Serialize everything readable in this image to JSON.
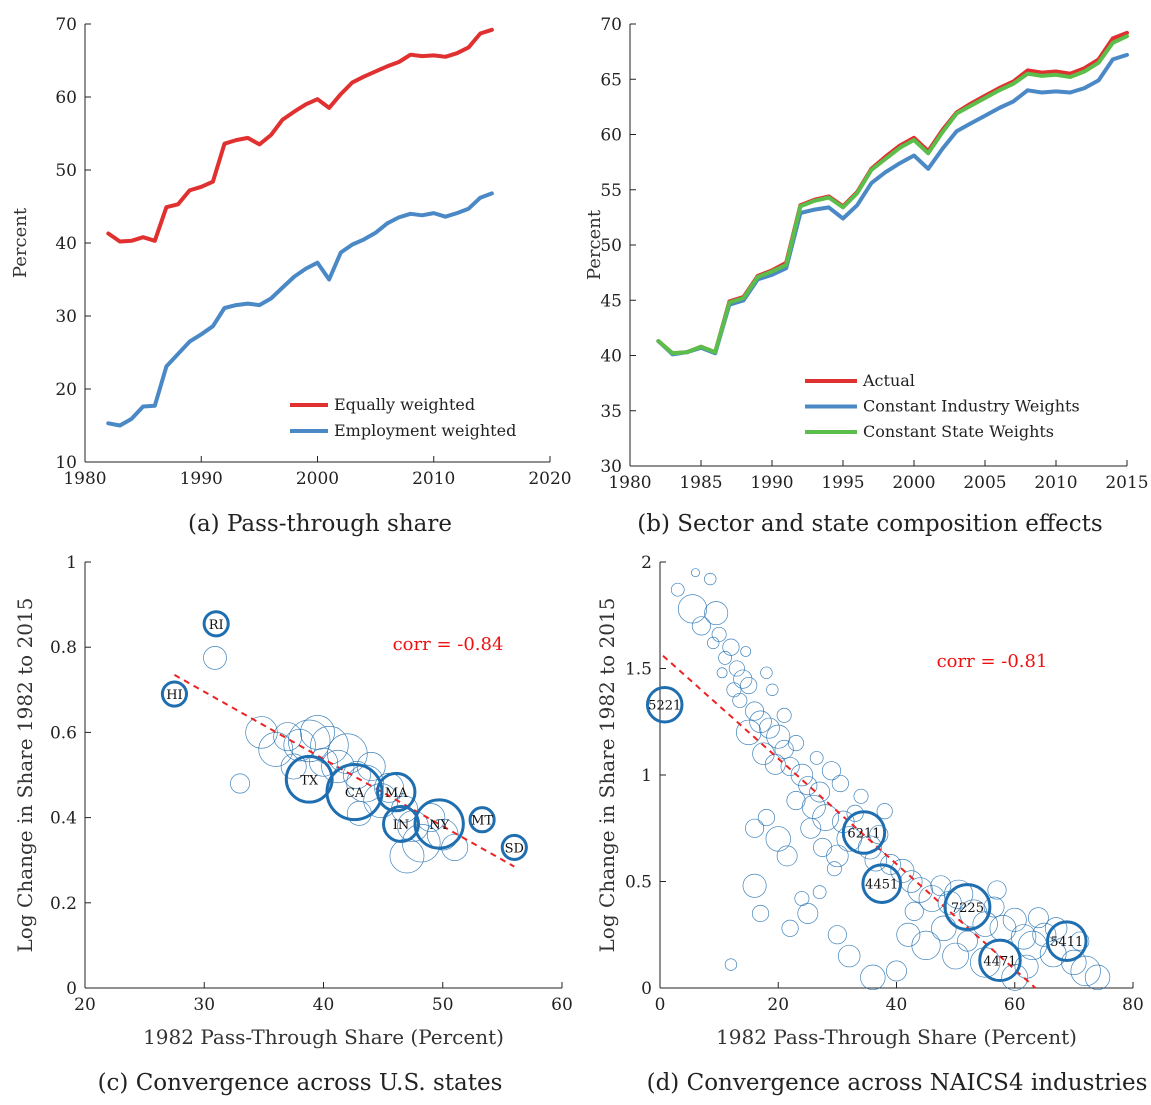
{
  "chart_data": [
    {
      "id": "a",
      "type": "line",
      "caption": "(a) Pass-through share",
      "ylabel": "Percent",
      "xlim": [
        1980,
        2020
      ],
      "ylim": [
        10,
        70
      ],
      "xticks": [
        "1980",
        "1990",
        "2000",
        "2010",
        "2020"
      ],
      "yticks": [
        "10",
        "20",
        "30",
        "40",
        "50",
        "60",
        "70"
      ],
      "legend_position": "bottom-right",
      "grid": false,
      "x": [
        1982,
        1983,
        1984,
        1985,
        1986,
        1987,
        1988,
        1989,
        1990,
        1991,
        1992,
        1993,
        1994,
        1995,
        1996,
        1997,
        1998,
        1999,
        2000,
        2001,
        2002,
        2003,
        2004,
        2005,
        2006,
        2007,
        2008,
        2009,
        2010,
        2011,
        2012,
        2013,
        2014,
        2015
      ],
      "series": [
        {
          "name": "Equally weighted",
          "color": "#e03030",
          "values": [
            41.3,
            40.2,
            40.3,
            40.8,
            40.3,
            44.9,
            45.3,
            47.2,
            47.7,
            48.4,
            53.6,
            54.1,
            54.4,
            53.5,
            54.8,
            56.9,
            58.0,
            59.0,
            59.7,
            58.5,
            60.4,
            62.0,
            62.8,
            63.5,
            64.2,
            64.8,
            65.8,
            65.6,
            65.7,
            65.5,
            66.0,
            66.8,
            68.7,
            69.2
          ]
        },
        {
          "name": "Employment weighted",
          "color": "#4a88c6",
          "values": [
            15.3,
            15.0,
            15.9,
            17.6,
            17.7,
            23.1,
            24.8,
            26.5,
            27.5,
            28.6,
            31.1,
            31.5,
            31.7,
            31.5,
            32.4,
            33.9,
            35.4,
            36.5,
            37.3,
            35.0,
            38.7,
            39.8,
            40.5,
            41.4,
            42.7,
            43.5,
            44.0,
            43.8,
            44.1,
            43.6,
            44.1,
            44.7,
            46.2,
            46.8
          ]
        }
      ]
    },
    {
      "id": "b",
      "type": "line",
      "caption": "(b) Sector and state composition effects",
      "ylabel": "Percent",
      "xlim": [
        1980,
        2015
      ],
      "ylim": [
        30,
        70
      ],
      "xticks": [
        "1980",
        "1985",
        "1990",
        "1995",
        "2000",
        "2005",
        "2010",
        "2015"
      ],
      "yticks": [
        "30",
        "35",
        "40",
        "45",
        "50",
        "55",
        "60",
        "65",
        "70"
      ],
      "legend_position": "bottom-right",
      "grid": false,
      "x": [
        1982,
        1983,
        1984,
        1985,
        1986,
        1987,
        1988,
        1989,
        1990,
        1991,
        1992,
        1993,
        1994,
        1995,
        1996,
        1997,
        1998,
        1999,
        2000,
        2001,
        2002,
        2003,
        2004,
        2005,
        2006,
        2007,
        2008,
        2009,
        2010,
        2011,
        2012,
        2013,
        2014,
        2015
      ],
      "series": [
        {
          "name": "Actual",
          "color": "#e03030",
          "values": [
            41.3,
            40.2,
            40.3,
            40.8,
            40.3,
            44.9,
            45.3,
            47.2,
            47.7,
            48.4,
            53.6,
            54.1,
            54.4,
            53.5,
            54.8,
            56.9,
            58.0,
            59.0,
            59.7,
            58.5,
            60.4,
            62.0,
            62.8,
            63.5,
            64.2,
            64.8,
            65.8,
            65.6,
            65.7,
            65.5,
            66.0,
            66.8,
            68.7,
            69.2
          ]
        },
        {
          "name": "Constant Industry Weights",
          "color": "#4a88c6",
          "values": [
            41.3,
            40.1,
            40.3,
            40.7,
            40.2,
            44.6,
            45.0,
            46.9,
            47.3,
            47.9,
            52.9,
            53.2,
            53.4,
            52.4,
            53.6,
            55.6,
            56.6,
            57.4,
            58.1,
            56.9,
            58.7,
            60.3,
            61.0,
            61.7,
            62.4,
            63.0,
            64.0,
            63.8,
            63.9,
            63.8,
            64.2,
            64.9,
            66.8,
            67.2
          ]
        },
        {
          "name": "Constant State Weights",
          "color": "#5cbe4a",
          "values": [
            41.3,
            40.2,
            40.3,
            40.8,
            40.3,
            44.8,
            45.2,
            47.1,
            47.6,
            48.2,
            53.5,
            54.0,
            54.3,
            53.4,
            54.7,
            56.8,
            57.8,
            58.8,
            59.5,
            58.3,
            60.2,
            61.9,
            62.6,
            63.3,
            64.0,
            64.6,
            65.5,
            65.3,
            65.4,
            65.2,
            65.7,
            66.5,
            68.3,
            68.9
          ]
        }
      ]
    },
    {
      "id": "c",
      "type": "scatter",
      "caption": "(c) Convergence across U.S. states",
      "xlabel": "1982 Pass-Through Share (Percent)",
      "ylabel": "Log Change in Share 1982 to 2015",
      "xlim": [
        20,
        60
      ],
      "ylim": [
        0,
        1
      ],
      "xticks": [
        "20",
        "30",
        "40",
        "50",
        "60"
      ],
      "yticks": [
        "0",
        "0.2",
        "0.4",
        "0.6",
        "0.8",
        "1"
      ],
      "annotation": "corr = -0.84",
      "fit_line": {
        "x": [
          27.5,
          56.0
        ],
        "y": [
          0.735,
          0.285
        ],
        "color": "#ee2222",
        "style": "dashed"
      },
      "point_color": "#1f6fb0",
      "labeled_points": [
        {
          "label": "RI",
          "x": 31.0,
          "y": 0.855,
          "size": 1.0
        },
        {
          "label": "HI",
          "x": 27.5,
          "y": 0.69,
          "size": 1.0
        },
        {
          "label": "TX",
          "x": 38.8,
          "y": 0.49,
          "size": 3.6
        },
        {
          "label": "CA",
          "x": 42.6,
          "y": 0.46,
          "size": 5.2
        },
        {
          "label": "MA",
          "x": 46.1,
          "y": 0.46,
          "size": 2.4
        },
        {
          "label": "IN",
          "x": 46.5,
          "y": 0.385,
          "size": 2.1
        },
        {
          "label": "NY",
          "x": 49.7,
          "y": 0.385,
          "size": 4.0
        },
        {
          "label": "MT",
          "x": 53.3,
          "y": 0.395,
          "size": 1.0
        },
        {
          "label": "SD",
          "x": 56.0,
          "y": 0.33,
          "size": 1.0
        }
      ],
      "other_points": [
        {
          "x": 30.9,
          "y": 0.775,
          "size": 1.0
        },
        {
          "x": 33.0,
          "y": 0.48,
          "size": 0.7
        },
        {
          "x": 34.8,
          "y": 0.6,
          "size": 1.9
        },
        {
          "x": 36.0,
          "y": 0.56,
          "size": 2.2
        },
        {
          "x": 37.0,
          "y": 0.59,
          "size": 1.5
        },
        {
          "x": 38.0,
          "y": 0.57,
          "size": 1.9
        },
        {
          "x": 38.8,
          "y": 0.58,
          "size": 3.3
        },
        {
          "x": 39.5,
          "y": 0.6,
          "size": 2.2
        },
        {
          "x": 40.0,
          "y": 0.53,
          "size": 1.5
        },
        {
          "x": 40.5,
          "y": 0.57,
          "size": 2.7
        },
        {
          "x": 41.2,
          "y": 0.52,
          "size": 2.0
        },
        {
          "x": 42.0,
          "y": 0.55,
          "size": 3.0
        },
        {
          "x": 42.8,
          "y": 0.5,
          "size": 1.4
        },
        {
          "x": 43.5,
          "y": 0.48,
          "size": 2.6
        },
        {
          "x": 44.0,
          "y": 0.52,
          "size": 1.5
        },
        {
          "x": 44.8,
          "y": 0.44,
          "size": 2.2
        },
        {
          "x": 45.5,
          "y": 0.47,
          "size": 1.6
        },
        {
          "x": 46.8,
          "y": 0.42,
          "size": 1.3
        },
        {
          "x": 47.5,
          "y": 0.38,
          "size": 1.8
        },
        {
          "x": 48.2,
          "y": 0.34,
          "size": 2.7
        },
        {
          "x": 49.0,
          "y": 0.4,
          "size": 1.5
        },
        {
          "x": 50.0,
          "y": 0.36,
          "size": 1.8
        },
        {
          "x": 51.0,
          "y": 0.33,
          "size": 1.3
        },
        {
          "x": 47.0,
          "y": 0.31,
          "size": 2.2
        },
        {
          "x": 43.0,
          "y": 0.41,
          "size": 1.1
        },
        {
          "x": 37.5,
          "y": 0.52,
          "size": 1.2
        }
      ]
    },
    {
      "id": "d",
      "type": "scatter",
      "caption": "(d) Convergence across NAICS4 industries",
      "xlabel": "1982 Pass-Through Share (Percent)",
      "ylabel": "Log Change in Share 1982 to 2015",
      "xlim": [
        0,
        80
      ],
      "ylim": [
        0,
        2
      ],
      "xticks": [
        "0",
        "20",
        "40",
        "60",
        "80"
      ],
      "yticks": [
        "0",
        "0.5",
        "1",
        "1.5",
        "2"
      ],
      "annotation": "corr = -0.81",
      "fit_line": {
        "x": [
          0.5,
          63.5
        ],
        "y": [
          1.56,
          0.0
        ],
        "color": "#ee2222",
        "style": "dashed"
      },
      "point_color": "#1f6fb0",
      "labeled_points": [
        {
          "label": "5221",
          "x": 0.8,
          "y": 1.33,
          "size": 1.6
        },
        {
          "label": "6211",
          "x": 34.5,
          "y": 0.73,
          "size": 2.3
        },
        {
          "label": "4451",
          "x": 37.5,
          "y": 0.49,
          "size": 1.9
        },
        {
          "label": "7225",
          "x": 52.0,
          "y": 0.38,
          "size": 2.7
        },
        {
          "label": "4471",
          "x": 57.5,
          "y": 0.13,
          "size": 2.2
        },
        {
          "label": "5411",
          "x": 68.8,
          "y": 0.22,
          "size": 2.0
        }
      ],
      "other_points": [
        {
          "x": 6.0,
          "y": 1.95,
          "size": 0.1
        },
        {
          "x": 3.0,
          "y": 1.87,
          "size": 0.25
        },
        {
          "x": 8.5,
          "y": 1.92,
          "size": 0.2
        },
        {
          "x": 5.5,
          "y": 1.78,
          "size": 1.2
        },
        {
          "x": 9.5,
          "y": 1.76,
          "size": 0.8
        },
        {
          "x": 7.0,
          "y": 1.7,
          "size": 0.5
        },
        {
          "x": 10.0,
          "y": 1.66,
          "size": 0.3
        },
        {
          "x": 12.0,
          "y": 1.6,
          "size": 0.4
        },
        {
          "x": 11.0,
          "y": 1.55,
          "size": 0.25
        },
        {
          "x": 13.0,
          "y": 1.5,
          "size": 0.35
        },
        {
          "x": 14.0,
          "y": 1.45,
          "size": 0.5
        },
        {
          "x": 12.5,
          "y": 1.4,
          "size": 0.3
        },
        {
          "x": 15.0,
          "y": 1.42,
          "size": 0.4
        },
        {
          "x": 13.5,
          "y": 1.35,
          "size": 0.3
        },
        {
          "x": 16.0,
          "y": 1.3,
          "size": 0.5
        },
        {
          "x": 17.0,
          "y": 1.25,
          "size": 0.7
        },
        {
          "x": 15.0,
          "y": 1.2,
          "size": 0.9
        },
        {
          "x": 18.5,
          "y": 1.22,
          "size": 0.6
        },
        {
          "x": 20.0,
          "y": 1.18,
          "size": 0.8
        },
        {
          "x": 21.0,
          "y": 1.12,
          "size": 0.5
        },
        {
          "x": 17.5,
          "y": 1.1,
          "size": 0.7
        },
        {
          "x": 19.5,
          "y": 1.05,
          "size": 0.6
        },
        {
          "x": 22.0,
          "y": 1.04,
          "size": 0.5
        },
        {
          "x": 24.0,
          "y": 1.0,
          "size": 0.7
        },
        {
          "x": 25.0,
          "y": 0.95,
          "size": 0.5
        },
        {
          "x": 27.0,
          "y": 0.92,
          "size": 0.6
        },
        {
          "x": 29.0,
          "y": 1.02,
          "size": 0.5
        },
        {
          "x": 30.5,
          "y": 0.96,
          "size": 0.4
        },
        {
          "x": 26.0,
          "y": 0.85,
          "size": 0.8
        },
        {
          "x": 28.0,
          "y": 0.8,
          "size": 1.0
        },
        {
          "x": 31.0,
          "y": 0.78,
          "size": 0.7
        },
        {
          "x": 23.0,
          "y": 0.88,
          "size": 0.5
        },
        {
          "x": 25.5,
          "y": 0.75,
          "size": 0.6
        },
        {
          "x": 18.0,
          "y": 0.8,
          "size": 0.4
        },
        {
          "x": 20.0,
          "y": 0.7,
          "size": 0.9
        },
        {
          "x": 16.0,
          "y": 0.75,
          "size": 0.5
        },
        {
          "x": 21.5,
          "y": 0.62,
          "size": 0.6
        },
        {
          "x": 27.5,
          "y": 0.66,
          "size": 0.5
        },
        {
          "x": 30.0,
          "y": 0.62,
          "size": 0.7
        },
        {
          "x": 32.0,
          "y": 0.7,
          "size": 0.9
        },
        {
          "x": 35.5,
          "y": 0.66,
          "size": 0.8
        },
        {
          "x": 37.0,
          "y": 0.72,
          "size": 0.5
        },
        {
          "x": 36.5,
          "y": 0.6,
          "size": 0.7
        },
        {
          "x": 39.0,
          "y": 0.58,
          "size": 0.6
        },
        {
          "x": 41.0,
          "y": 0.55,
          "size": 0.8
        },
        {
          "x": 42.5,
          "y": 0.5,
          "size": 0.7
        },
        {
          "x": 44.0,
          "y": 0.46,
          "size": 0.9
        },
        {
          "x": 46.0,
          "y": 0.42,
          "size": 1.0
        },
        {
          "x": 47.5,
          "y": 0.48,
          "size": 0.6
        },
        {
          "x": 49.0,
          "y": 0.4,
          "size": 0.8
        },
        {
          "x": 50.5,
          "y": 0.44,
          "size": 1.2
        },
        {
          "x": 53.0,
          "y": 0.35,
          "size": 1.1
        },
        {
          "x": 55.0,
          "y": 0.3,
          "size": 0.9
        },
        {
          "x": 56.5,
          "y": 0.38,
          "size": 0.6
        },
        {
          "x": 58.0,
          "y": 0.28,
          "size": 1.0
        },
        {
          "x": 60.0,
          "y": 0.32,
          "size": 0.8
        },
        {
          "x": 61.5,
          "y": 0.24,
          "size": 0.9
        },
        {
          "x": 63.0,
          "y": 0.2,
          "size": 1.2
        },
        {
          "x": 65.0,
          "y": 0.25,
          "size": 0.8
        },
        {
          "x": 66.5,
          "y": 0.16,
          "size": 1.0
        },
        {
          "x": 70.0,
          "y": 0.12,
          "size": 0.9
        },
        {
          "x": 72.0,
          "y": 0.08,
          "size": 1.3
        },
        {
          "x": 74.0,
          "y": 0.05,
          "size": 0.9
        },
        {
          "x": 62.0,
          "y": 0.1,
          "size": 0.8
        },
        {
          "x": 60.0,
          "y": 0.05,
          "size": 1.0
        },
        {
          "x": 55.0,
          "y": 0.12,
          "size": 1.3
        },
        {
          "x": 50.0,
          "y": 0.15,
          "size": 1.0
        },
        {
          "x": 45.0,
          "y": 0.2,
          "size": 1.2
        },
        {
          "x": 42.0,
          "y": 0.25,
          "size": 0.8
        },
        {
          "x": 40.0,
          "y": 0.08,
          "size": 0.6
        },
        {
          "x": 36.0,
          "y": 0.05,
          "size": 0.9
        },
        {
          "x": 32.0,
          "y": 0.15,
          "size": 0.7
        },
        {
          "x": 30.0,
          "y": 0.25,
          "size": 0.5
        },
        {
          "x": 25.0,
          "y": 0.35,
          "size": 0.6
        },
        {
          "x": 22.0,
          "y": 0.28,
          "size": 0.4
        },
        {
          "x": 16.0,
          "y": 0.48,
          "size": 0.8
        },
        {
          "x": 17.0,
          "y": 0.35,
          "size": 0.4
        },
        {
          "x": 12.0,
          "y": 0.11,
          "size": 0.2
        },
        {
          "x": 24.0,
          "y": 0.42,
          "size": 0.3
        },
        {
          "x": 27.0,
          "y": 0.45,
          "size": 0.25
        },
        {
          "x": 29.5,
          "y": 0.56,
          "size": 0.3
        },
        {
          "x": 33.0,
          "y": 0.82,
          "size": 0.4
        },
        {
          "x": 34.0,
          "y": 0.9,
          "size": 0.3
        },
        {
          "x": 38.0,
          "y": 0.83,
          "size": 0.35
        },
        {
          "x": 43.0,
          "y": 0.36,
          "size": 0.5
        },
        {
          "x": 48.0,
          "y": 0.28,
          "size": 0.9
        },
        {
          "x": 52.0,
          "y": 0.22,
          "size": 0.6
        },
        {
          "x": 57.0,
          "y": 0.46,
          "size": 0.5
        },
        {
          "x": 64.0,
          "y": 0.33,
          "size": 0.6
        },
        {
          "x": 67.0,
          "y": 0.28,
          "size": 0.7
        },
        {
          "x": 71.0,
          "y": 0.22,
          "size": 0.5
        },
        {
          "x": 19.0,
          "y": 1.4,
          "size": 0.2
        },
        {
          "x": 21.0,
          "y": 1.28,
          "size": 0.3
        },
        {
          "x": 23.0,
          "y": 1.15,
          "size": 0.35
        },
        {
          "x": 26.5,
          "y": 1.08,
          "size": 0.25
        },
        {
          "x": 18.0,
          "y": 1.48,
          "size": 0.2
        },
        {
          "x": 10.5,
          "y": 1.48,
          "size": 0.15
        },
        {
          "x": 14.5,
          "y": 1.58,
          "size": 0.15
        },
        {
          "x": 9.0,
          "y": 1.62,
          "size": 0.2
        }
      ]
    }
  ]
}
